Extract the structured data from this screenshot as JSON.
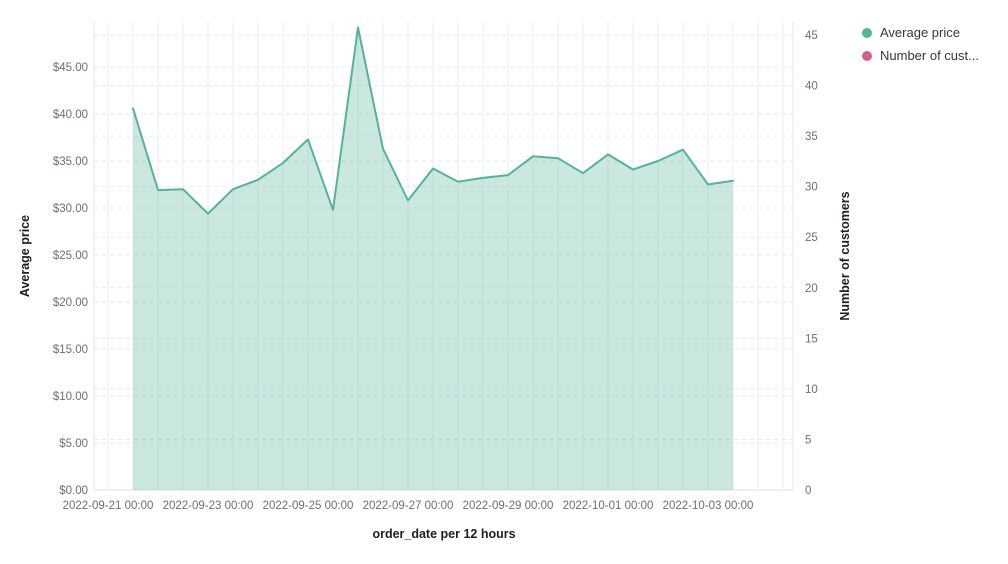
{
  "legend": {
    "position": "top-right",
    "items": [
      {
        "label": "Average price",
        "color": "#54B399"
      },
      {
        "label": "Number of cust...",
        "color": "#D36086"
      }
    ]
  },
  "chart_data": {
    "type": "area",
    "title": "",
    "grid": true,
    "legend_position": "top-right",
    "xlabel": "order_date per 12 hours",
    "x": [
      "2022-09-21 12:00",
      "2022-09-22 00:00",
      "2022-09-22 12:00",
      "2022-09-23 00:00",
      "2022-09-23 12:00",
      "2022-09-24 00:00",
      "2022-09-24 12:00",
      "2022-09-25 00:00",
      "2022-09-25 12:00",
      "2022-09-26 00:00",
      "2022-09-26 12:00",
      "2022-09-27 00:00",
      "2022-09-27 12:00",
      "2022-09-28 00:00",
      "2022-09-28 12:00",
      "2022-09-29 00:00",
      "2022-09-29 12:00",
      "2022-09-30 00:00",
      "2022-09-30 12:00",
      "2022-10-01 00:00",
      "2022-10-01 12:00",
      "2022-10-02 00:00",
      "2022-10-02 12:00",
      "2022-10-03 00:00",
      "2022-10-03 12:00"
    ],
    "series": [
      {
        "name": "Average price",
        "axis": "left",
        "color": "#54B399",
        "fill_opacity": 0.3,
        "values": [
          40.6,
          31.9,
          32.0,
          29.4,
          32.0,
          33.0,
          34.8,
          37.3,
          29.8,
          49.2,
          36.3,
          30.8,
          34.2,
          32.8,
          33.2,
          33.5,
          35.5,
          35.3,
          33.7,
          35.7,
          34.1,
          35.0,
          36.2,
          32.5,
          32.9
        ]
      },
      {
        "name": "Number of customers",
        "axis": "right",
        "color": "#D36086",
        "values": []
      }
    ],
    "left_axis": {
      "title": "Average price",
      "range": [
        0,
        45
      ],
      "tick_step": 5,
      "tick_labels": [
        "$0.00",
        "$5.00",
        "$10.00",
        "$15.00",
        "$20.00",
        "$25.00",
        "$30.00",
        "$35.00",
        "$40.00",
        "$45.00"
      ]
    },
    "right_axis": {
      "title": "Number of customers",
      "range": [
        0,
        45
      ],
      "tick_step": 5,
      "tick_labels": [
        "0",
        "5",
        "10",
        "15",
        "20",
        "25",
        "30",
        "35",
        "40",
        "45"
      ]
    },
    "x_axis": {
      "title": "order_date per 12 hours",
      "tick_labels": [
        "2022-09-21 00:00",
        "2022-09-23 00:00",
        "2022-09-25 00:00",
        "2022-09-27 00:00",
        "2022-09-29 00:00",
        "2022-10-01 00:00",
        "2022-10-03 00:00"
      ]
    }
  }
}
